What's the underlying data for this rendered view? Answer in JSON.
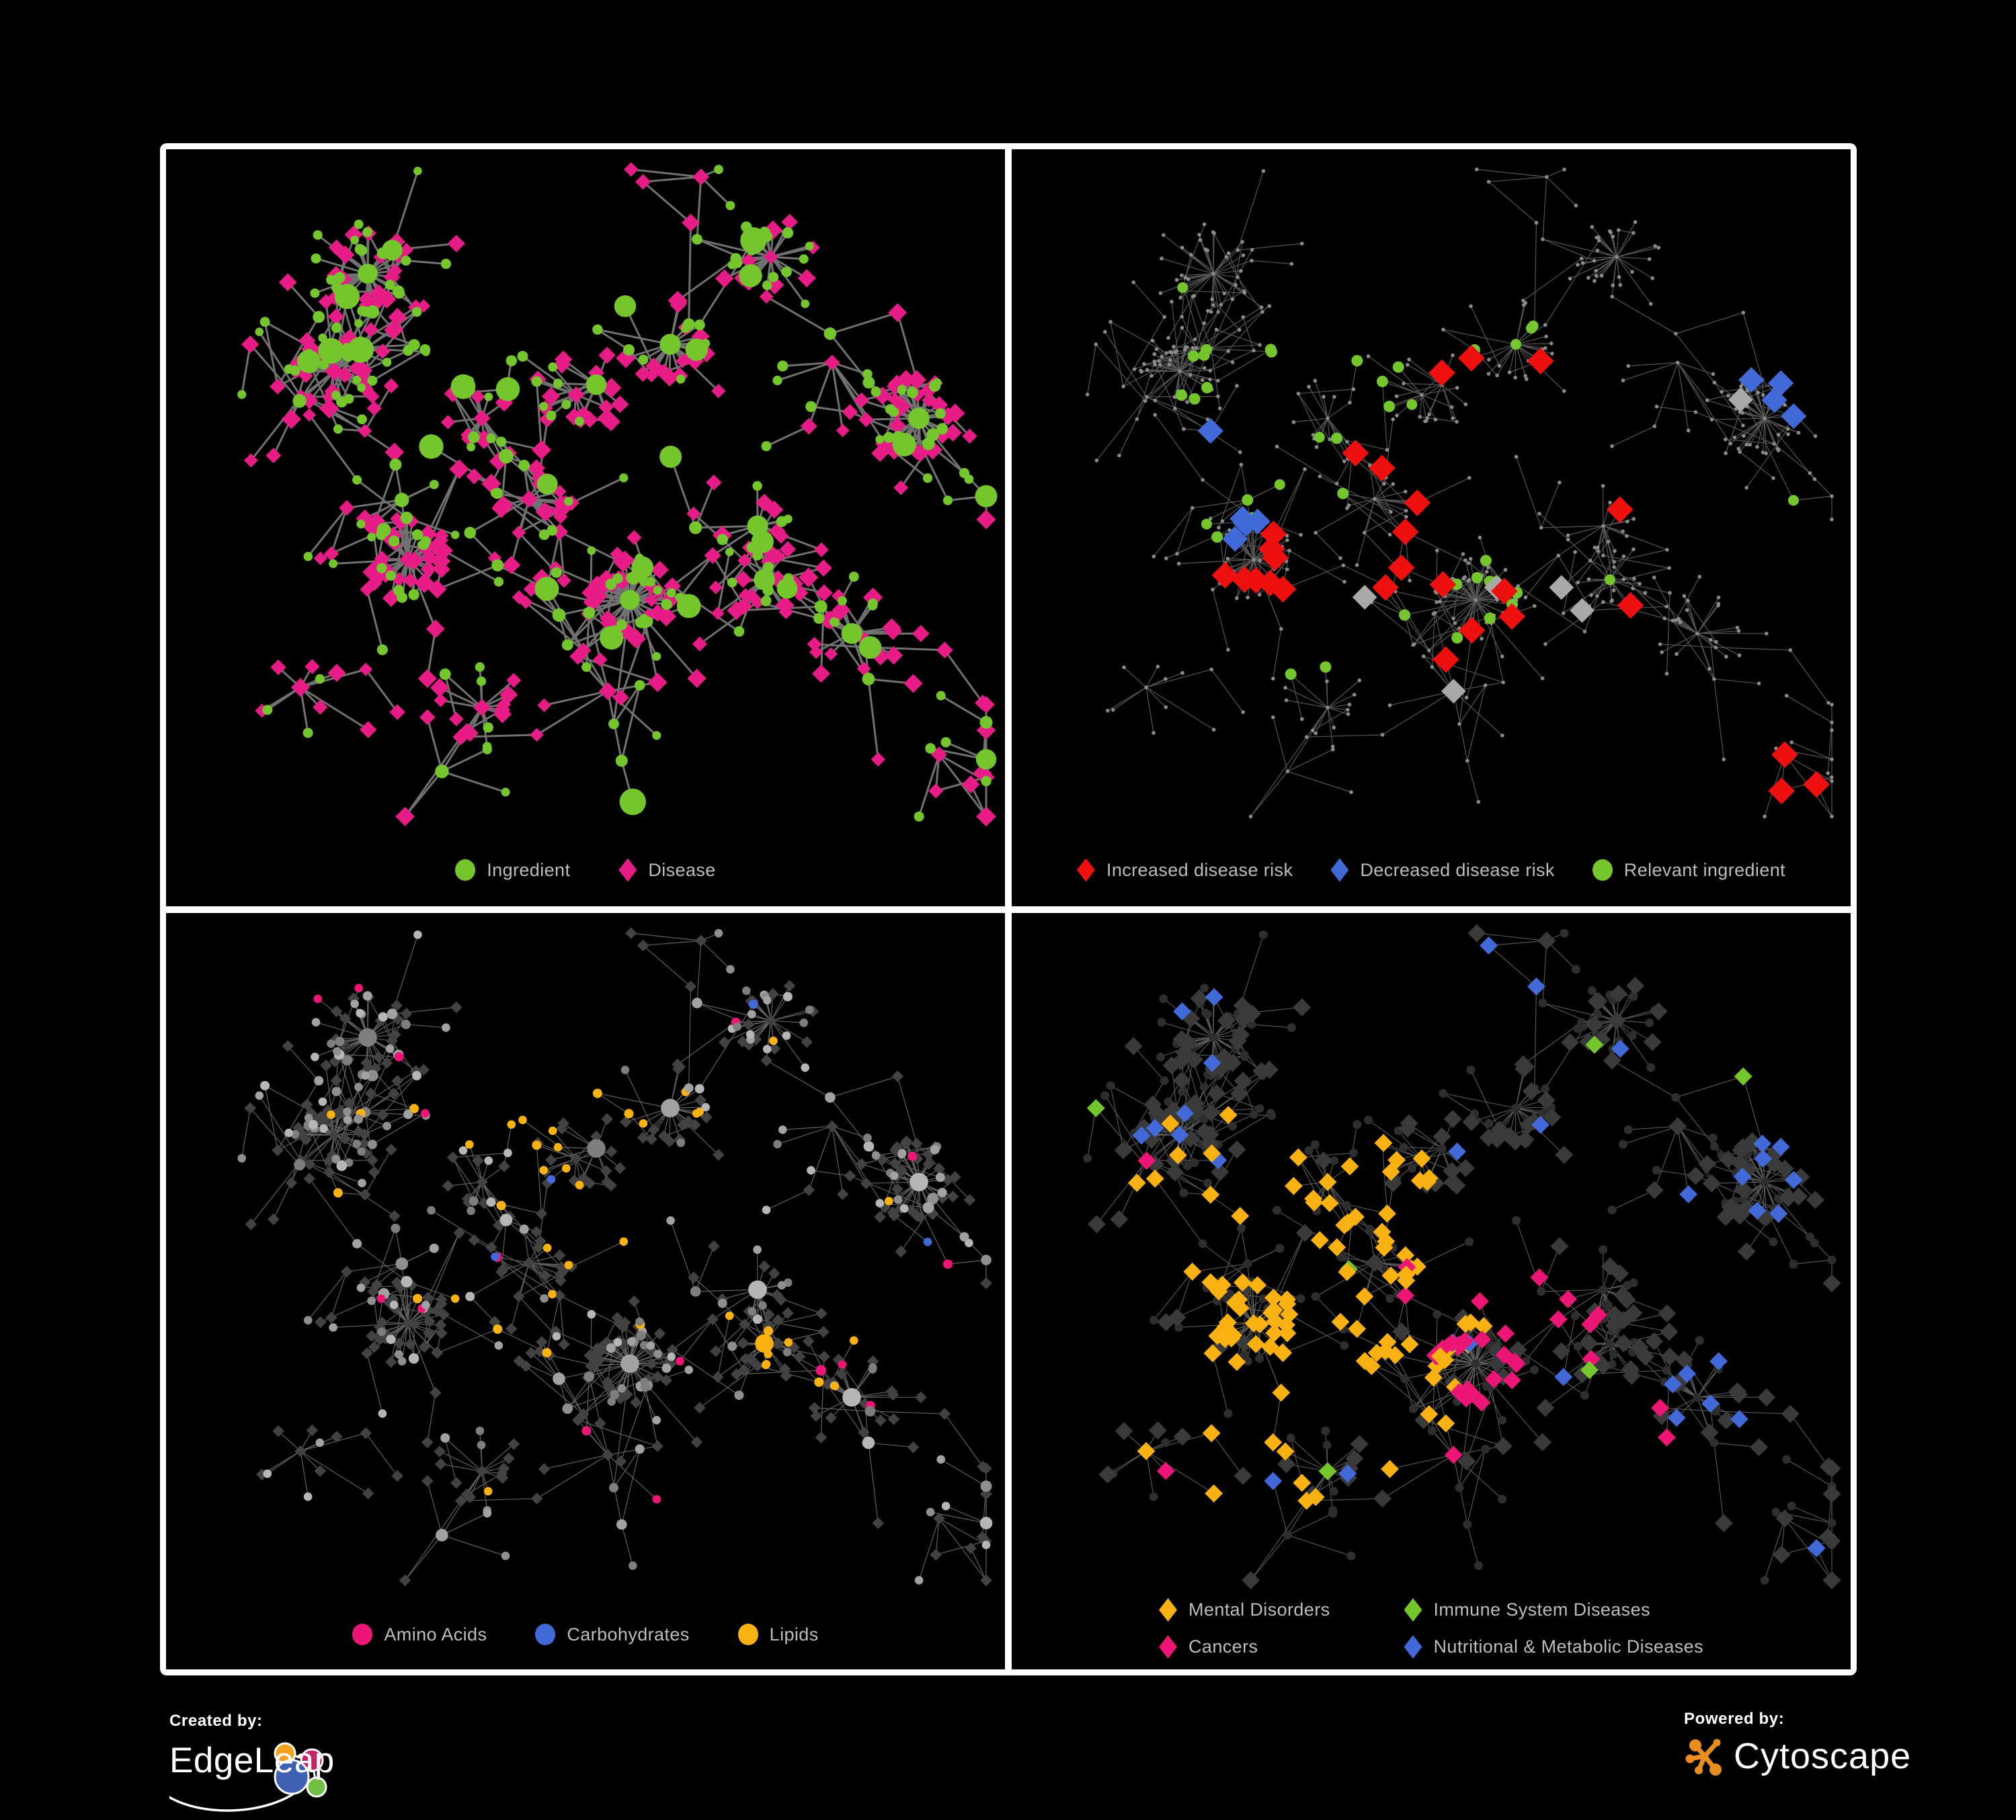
{
  "page": {
    "background": "#000000",
    "frame_color": "#FFFFFF",
    "legend_text_color": "#BDBDBD"
  },
  "chart_data": [
    {
      "id": "ingredient-disease-network",
      "type": "network",
      "legend": [
        {
          "label": "Ingredient",
          "shape": "circle",
          "color": "#74C62C"
        },
        {
          "label": "Disease",
          "shape": "diamond",
          "color": "#E81C87"
        }
      ],
      "colors": {
        "edge": "#787878"
      }
    },
    {
      "id": "disease-risk-network",
      "type": "network",
      "legend": [
        {
          "label": "Increased disease risk",
          "shape": "diamond",
          "color": "#EE0F0F"
        },
        {
          "label": "Decreased disease risk",
          "shape": "diamond",
          "color": "#4269D8"
        },
        {
          "label": "Relevant ingredient",
          "shape": "circle",
          "color": "#74C62C"
        }
      ],
      "colors": {
        "edge": "#5F5F5F",
        "base_node": "#8A8A8A",
        "neutral_diamond": "#A9A9A9"
      }
    },
    {
      "id": "ingredient-class-network",
      "type": "network",
      "legend": [
        {
          "label": "Amino Acids",
          "shape": "circle",
          "color": "#ED1677"
        },
        {
          "label": "Carbohydrates",
          "shape": "circle",
          "color": "#4269D8"
        },
        {
          "label": "Lipids",
          "shape": "circle",
          "color": "#F9B211"
        }
      ],
      "colors": {
        "edge": "#9C9C9C",
        "disease_node": "#424242",
        "ingredient_grays": [
          "#7E7E7E",
          "#8F8F8F",
          "#A2A2A2",
          "#B6B6B6"
        ]
      }
    },
    {
      "id": "disease-class-network",
      "type": "network",
      "legend_layout": "two-column",
      "legend": [
        {
          "label": "Mental Disorders",
          "shape": "diamond",
          "color": "#F9B211"
        },
        {
          "label": "Immune System Diseases",
          "shape": "diamond",
          "color": "#74C62C"
        },
        {
          "label": "Cancers",
          "shape": "diamond",
          "color": "#ED1677"
        },
        {
          "label": "Nutritional & Metabolic Diseases",
          "shape": "diamond",
          "color": "#4269D8"
        }
      ],
      "colors": {
        "edge": "#6C6C6C",
        "disease_node": "#3A3A3A",
        "ingredient_node": "#2E2E2E"
      }
    }
  ],
  "footer": {
    "created_by_label": "Created by:",
    "created_by_name": "EdgeLeap",
    "powered_by_label": "Powered by:",
    "powered_by_name": "Cytoscape",
    "edgeleap_logo_colors": {
      "orange": "#F2A21B",
      "magenta": "#C72567",
      "blue": "#3E61B3",
      "green": "#70BE44"
    },
    "cytoscape_logo_color": "#E98E1E"
  }
}
